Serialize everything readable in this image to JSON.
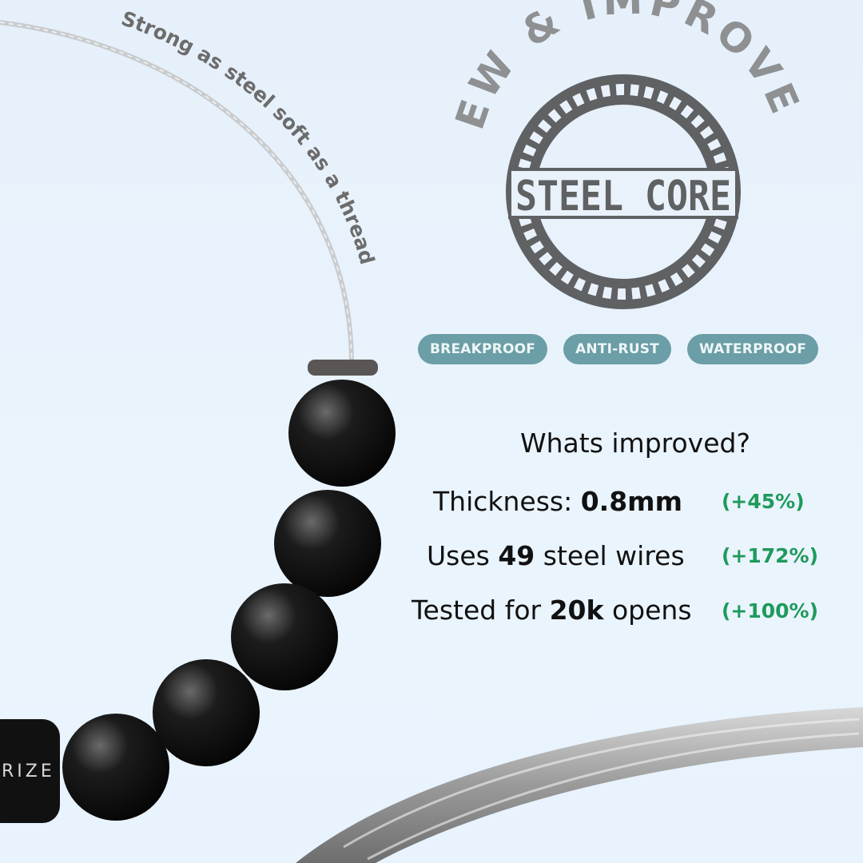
{
  "wire_caption": "Strong as steel soft as a thread",
  "badge": {
    "arc_text": "NEW & IMPROVED",
    "title": "STEEL CORE"
  },
  "tags": [
    "BREAKPROOF",
    "ANTI-RUST",
    "WATERPROOF"
  ],
  "improvements": {
    "heading": "Whats improved?",
    "rows": [
      {
        "pre": "Thickness: ",
        "bold": "0.8mm",
        "post": "",
        "change": "(+45%)"
      },
      {
        "pre": "Uses ",
        "bold": "49",
        "post": " steel wires",
        "change": "(+172%)"
      },
      {
        "pre": "Tested for ",
        "bold": "20k",
        "post": " opens",
        "change": "(+100%)"
      }
    ]
  },
  "clasp_brand": "RIZE",
  "colors": {
    "tag": "#6b9ea6",
    "positive": "#1e9a5c",
    "badge": "#5f6163"
  }
}
